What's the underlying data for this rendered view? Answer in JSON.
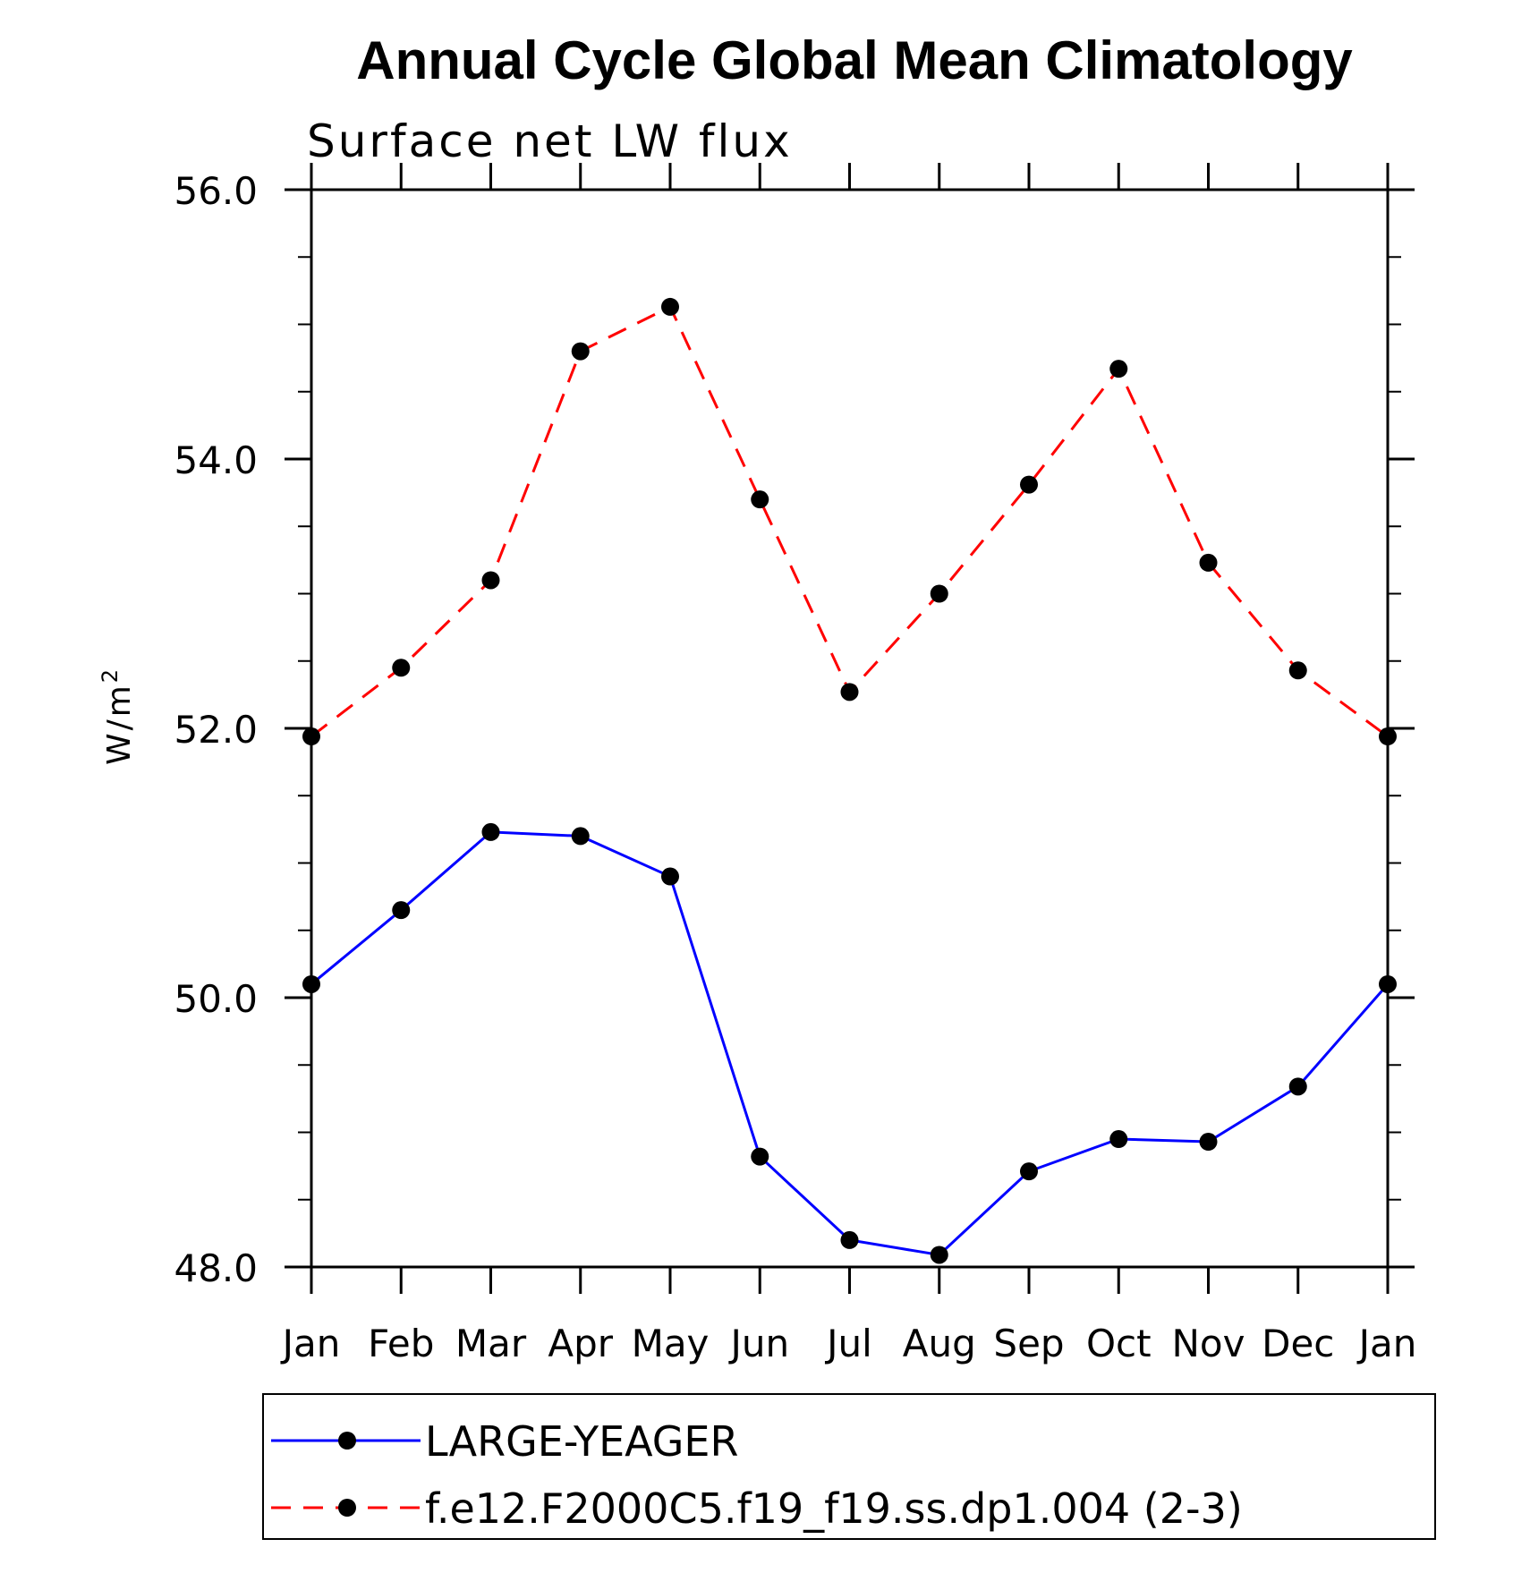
{
  "chart_data": {
    "type": "line",
    "title": "Annual Cycle Global Mean Climatology",
    "subtitle": "Surface net LW flux",
    "ylabel_base": "W/m",
    "ylabel_sup": "2",
    "ylim": [
      48.0,
      56.0
    ],
    "yticks": [
      "48.0",
      "50.0",
      "52.0",
      "54.0",
      "56.0"
    ],
    "categories": [
      "Jan",
      "Feb",
      "Mar",
      "Apr",
      "May",
      "Jun",
      "Jul",
      "Aug",
      "Sep",
      "Oct",
      "Nov",
      "Dec",
      "Jan"
    ],
    "series": [
      {
        "name": "LARGE-YEAGER",
        "color": "#0000ff",
        "style": "solid",
        "values": [
          50.1,
          50.65,
          51.23,
          51.2,
          50.9,
          48.82,
          48.2,
          48.09,
          48.71,
          48.95,
          48.93,
          49.34,
          50.1
        ]
      },
      {
        "name": "f.e12.F2000C5.f19_f19.ss.dp1.004 (2-3)",
        "color": "#ff0000",
        "style": "dashed",
        "values": [
          51.94,
          52.45,
          53.1,
          54.8,
          55.13,
          53.7,
          52.27,
          53.0,
          53.81,
          54.67,
          53.23,
          52.43,
          51.94
        ]
      }
    ],
    "legend_position": "bottom",
    "grid": false
  }
}
